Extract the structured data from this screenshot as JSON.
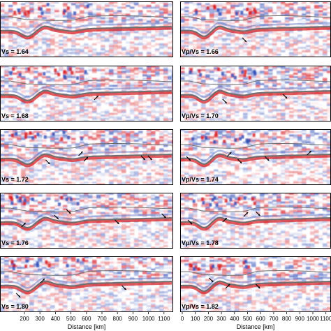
{
  "figure": {
    "panel_labels": [
      "Vs = 1.64",
      "Vp/Vs = 1.66",
      "Vs = 1.68",
      "Vp/Vs = 1.70",
      "Vs = 1.72",
      "Vp/Vs = 1.74",
      "Vs = 1.76",
      "Vp/Vs = 1.78",
      "Vs = 1.80",
      "Vp/Vs = 1.82"
    ],
    "x_axis": {
      "label": "Distance [km]",
      "left_ticks": [
        "200",
        "300",
        "400",
        "500",
        "600",
        "700",
        "800",
        "900",
        "1000",
        "1100"
      ],
      "right_ticks": [
        "0",
        "100",
        "200",
        "300",
        "400",
        "500",
        "600",
        "700",
        "800",
        "900",
        "1000",
        "1100"
      ]
    },
    "colors": {
      "positive": "#d7191c",
      "negative": "#2c4bb5",
      "interface": "#6f6f6f",
      "arrow": "#000000",
      "frame": "#000000"
    }
  }
}
